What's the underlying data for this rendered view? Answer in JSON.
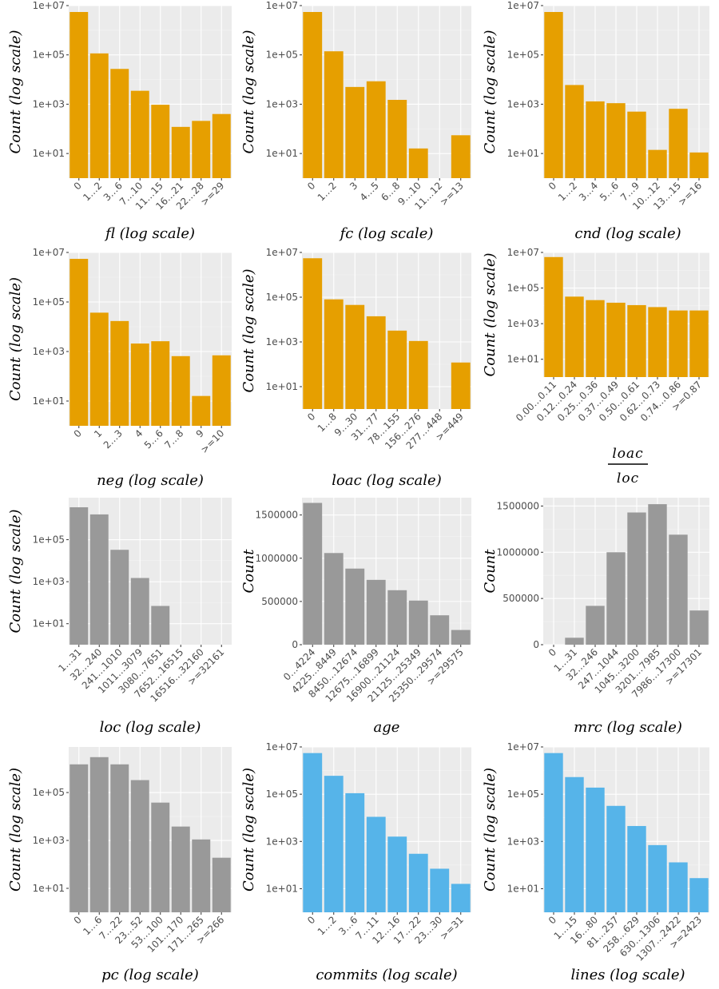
{
  "colors": {
    "orange": "#E69F00",
    "gray": "#999999",
    "blue": "#56B4E9",
    "panel": "#EBEBEB"
  },
  "chart_data": [
    {
      "id": "fl",
      "type": "bar",
      "scale": "log",
      "color": "orange",
      "xlabel": "fl (log scale)",
      "ylabel": "Count (log scale)",
      "ylim": [
        1,
        10000000
      ],
      "yticks": [
        10,
        1000,
        100000,
        10000000
      ],
      "ytick_labels": [
        "1e+01",
        "1e+03",
        "1e+05",
        "1e+07"
      ],
      "categories": [
        "0",
        "1…2",
        "3…6",
        "7…10",
        "11…15",
        "16…21",
        "22…28",
        ">=29"
      ],
      "values": [
        5500000,
        115000,
        27000,
        3500,
        950,
        120,
        210,
        400
      ]
    },
    {
      "id": "fc",
      "type": "bar",
      "scale": "log",
      "color": "orange",
      "xlabel": "fc (log scale)",
      "ylabel": "Count (log scale)",
      "ylim": [
        1,
        10000000
      ],
      "yticks": [
        10,
        1000,
        100000,
        10000000
      ],
      "ytick_labels": [
        "1e+01",
        "1e+03",
        "1e+05",
        "1e+07"
      ],
      "categories": [
        "0",
        "1…2",
        "3",
        "4…5",
        "6…8",
        "9…10",
        "11…12",
        ">=13"
      ],
      "values": [
        5500000,
        140000,
        5000,
        8500,
        1500,
        16,
        null,
        55
      ]
    },
    {
      "id": "cnd",
      "type": "bar",
      "scale": "log",
      "color": "orange",
      "xlabel": "cnd (log scale)",
      "ylabel": "Count (log scale)",
      "ylim": [
        1,
        10000000
      ],
      "yticks": [
        10,
        1000,
        100000,
        10000000
      ],
      "ytick_labels": [
        "1e+01",
        "1e+03",
        "1e+05",
        "1e+07"
      ],
      "categories": [
        "0",
        "1…2",
        "3…4",
        "5…6",
        "7…9",
        "10…12",
        "13…15",
        ">=16"
      ],
      "values": [
        5500000,
        6000,
        1300,
        1100,
        500,
        14,
        650,
        11
      ]
    },
    {
      "id": "neg",
      "type": "bar",
      "scale": "log",
      "color": "orange",
      "xlabel": "neg (log scale)",
      "ylabel": "Count (log scale)",
      "ylim": [
        1,
        10000000
      ],
      "yticks": [
        10,
        1000,
        100000,
        10000000
      ],
      "ytick_labels": [
        "1e+01",
        "1e+03",
        "1e+05",
        "1e+07"
      ],
      "categories": [
        "0",
        "1",
        "2…3",
        "4",
        "5…6",
        "7…8",
        "9",
        ">=10"
      ],
      "values": [
        5500000,
        37000,
        17000,
        2100,
        2600,
        650,
        16,
        700
      ]
    },
    {
      "id": "loac",
      "type": "bar",
      "scale": "log",
      "color": "orange",
      "xlabel": "loac (log scale)",
      "ylabel": "Count (log scale)",
      "ylim": [
        1,
        10000000
      ],
      "yticks": [
        10,
        1000,
        100000,
        10000000
      ],
      "ytick_labels": [
        "1e+01",
        "1e+03",
        "1e+05",
        "1e+07"
      ],
      "categories": [
        "0",
        "1…8",
        "9…30",
        "31…77",
        "78…155",
        "156…276",
        "277…448",
        ">=449"
      ],
      "values": [
        5500000,
        80000,
        45000,
        14000,
        3200,
        1100,
        null,
        120
      ]
    },
    {
      "id": "loac_loc",
      "type": "bar",
      "scale": "log",
      "color": "orange",
      "xlabel_num": "loac",
      "xlabel_den": "loc",
      "ylabel": "Count (log scale)",
      "ylim": [
        1,
        10000000
      ],
      "yticks": [
        10,
        1000,
        100000,
        10000000
      ],
      "ytick_labels": [
        "1e+01",
        "1e+03",
        "1e+05",
        "1e+07"
      ],
      "categories": [
        "0.00…0.11",
        "0.12…0.24",
        "0.25…0.36",
        "0.37…0.49",
        "0.50…0.61",
        "0.62…0.73",
        "0.74…0.86",
        ">=0.87"
      ],
      "values": [
        5500000,
        33000,
        21000,
        15000,
        11000,
        8500,
        5500,
        5500
      ]
    },
    {
      "id": "loc",
      "type": "bar",
      "scale": "log",
      "color": "gray",
      "xlabel": "loc (log scale)",
      "ylabel": "Count (log scale)",
      "ylim": [
        1,
        10000000
      ],
      "yticks": [
        10,
        1000,
        100000
      ],
      "ytick_labels": [
        "1e+01",
        "1e+03",
        "1e+05"
      ],
      "categories": [
        "1…31",
        "32…240",
        "241…1010",
        "1011…3079",
        "3080…7651",
        "7652…16515",
        "16516…32160",
        ">=32161"
      ],
      "values": [
        3500000,
        1600000,
        33000,
        1500,
        70,
        null,
        null,
        null
      ]
    },
    {
      "id": "age",
      "type": "bar",
      "scale": "linear",
      "color": "gray",
      "xlabel": "age",
      "ylabel": "Count",
      "ylim": [
        0,
        1700000
      ],
      "yticks": [
        0,
        500000,
        1000000,
        1500000
      ],
      "ytick_labels": [
        "0",
        "500000",
        "1000000",
        "1500000"
      ],
      "categories": [
        "0…4224",
        "4225…8449",
        "8450…12674",
        "12675…16899",
        "16900…21124",
        "21125…25349",
        "25350…29574",
        ">=29575"
      ],
      "values": [
        1640000,
        1060000,
        880000,
        750000,
        630000,
        510000,
        340000,
        170000
      ]
    },
    {
      "id": "mrc",
      "type": "bar",
      "scale": "linear",
      "color": "gray",
      "xlabel": "mrc (log scale)",
      "ylabel": "Count",
      "ylim": [
        0,
        1590000
      ],
      "yticks": [
        0,
        500000,
        1000000,
        1500000
      ],
      "ytick_labels": [
        "0",
        "500000",
        "1000000",
        "1500000"
      ],
      "categories": [
        "0",
        "1…31",
        "32…246",
        "247…1044",
        "1045…3200",
        "3201…7985",
        "7986…17300",
        ">=17301"
      ],
      "values": [
        0,
        75000,
        420000,
        1000000,
        1430000,
        1520000,
        1190000,
        370000
      ]
    },
    {
      "id": "pc",
      "type": "bar",
      "scale": "log",
      "color": "gray",
      "xlabel": "pc (log scale)",
      "ylabel": "Count (log scale)",
      "ylim": [
        1,
        8000000
      ],
      "yticks": [
        10,
        1000,
        100000
      ],
      "ytick_labels": [
        "1e+01",
        "1e+03",
        "1e+05"
      ],
      "categories": [
        "0",
        "1…6",
        "7…22",
        "23…52",
        "53…100",
        "101…170",
        "171…265",
        ">=266"
      ],
      "values": [
        1500000,
        3000000,
        1500000,
        330000,
        38000,
        3800,
        1100,
        190
      ]
    },
    {
      "id": "commits",
      "type": "bar",
      "scale": "log",
      "color": "blue",
      "xlabel": "commits (log scale)",
      "ylabel": "Count (log scale)",
      "ylim": [
        1,
        10000000
      ],
      "yticks": [
        10,
        1000,
        100000,
        10000000
      ],
      "ytick_labels": [
        "1e+01",
        "1e+03",
        "1e+05",
        "1e+07"
      ],
      "categories": [
        "0",
        "1…2",
        "3…6",
        "7…11",
        "12…16",
        "17…22",
        "23…30",
        ">=31"
      ],
      "values": [
        5500000,
        600000,
        110000,
        11000,
        1600,
        300,
        70,
        16
      ]
    },
    {
      "id": "lines",
      "type": "bar",
      "scale": "log",
      "color": "blue",
      "xlabel": "lines (log scale)",
      "ylabel": "Count (log scale)",
      "ylim": [
        1,
        10000000
      ],
      "yticks": [
        10,
        1000,
        100000,
        10000000
      ],
      "ytick_labels": [
        "1e+01",
        "1e+03",
        "1e+05",
        "1e+07"
      ],
      "categories": [
        "0",
        "1…15",
        "16…80",
        "81…257",
        "258…629",
        "630…1306",
        "1307…2422",
        ">=2423"
      ],
      "values": [
        5500000,
        530000,
        190000,
        32000,
        4500,
        700,
        130,
        28
      ]
    }
  ]
}
